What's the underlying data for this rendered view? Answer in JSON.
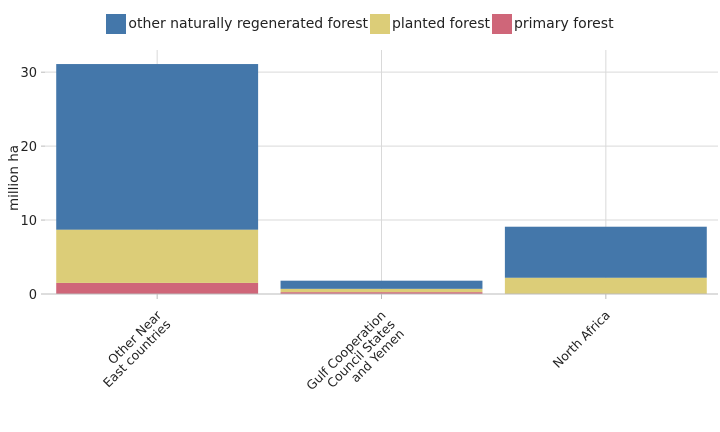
{
  "chart_data": {
    "type": "bar",
    "stacked": true,
    "ylabel": "million ha",
    "xlabel": "",
    "ylim": [
      0,
      33
    ],
    "yticks": [
      0,
      10,
      20,
      30
    ],
    "grid": true,
    "legend_position": "top",
    "categories": [
      [
        "Other Near",
        "East countries"
      ],
      [
        "Gulf Cooperation",
        "Council States",
        "and Yemen"
      ],
      [
        "North Africa"
      ]
    ],
    "series": [
      {
        "name": "primary forest",
        "color": "#cf6679",
        "values": [
          1.5,
          0.25,
          0.0
        ]
      },
      {
        "name": "planted forest",
        "color": "#dccd78",
        "values": [
          7.2,
          0.45,
          2.2
        ]
      },
      {
        "name": "other naturally regenerated forest",
        "color": "#4477aa",
        "values": [
          22.4,
          1.1,
          6.9
        ]
      }
    ],
    "legend_order": [
      2,
      1,
      0
    ]
  }
}
